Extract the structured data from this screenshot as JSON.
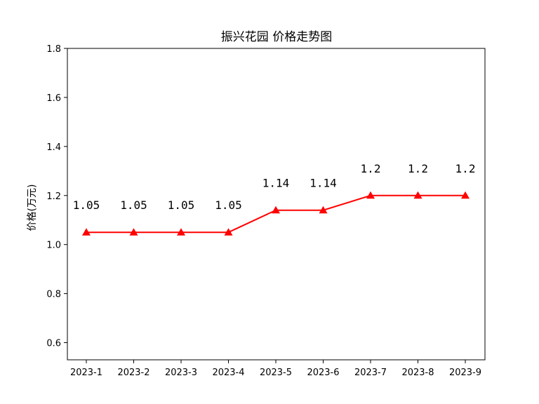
{
  "chart_data": {
    "type": "line",
    "title": "振兴花园 价格走势图",
    "xlabel": "",
    "ylabel": "价格(万元)",
    "categories": [
      "2023-1",
      "2023-2",
      "2023-3",
      "2023-4",
      "2023-5",
      "2023-6",
      "2023-7",
      "2023-8",
      "2023-9"
    ],
    "series": [
      {
        "values": [
          1.05,
          1.05,
          1.05,
          1.05,
          1.14,
          1.14,
          1.2,
          1.2,
          1.2
        ],
        "color": "#ff0000",
        "marker": "triangle-up",
        "data_labels": [
          "1.05",
          "1.05",
          "1.05",
          "1.05",
          "1.14",
          "1.14",
          "1.2",
          "1.2",
          "1.2"
        ]
      }
    ],
    "ylim": [
      0.53,
      1.8
    ],
    "yticks": [
      "0.6",
      "0.8",
      "1.0",
      "1.2",
      "1.4",
      "1.6",
      "1.8"
    ],
    "grid": false,
    "legend": "none"
  }
}
